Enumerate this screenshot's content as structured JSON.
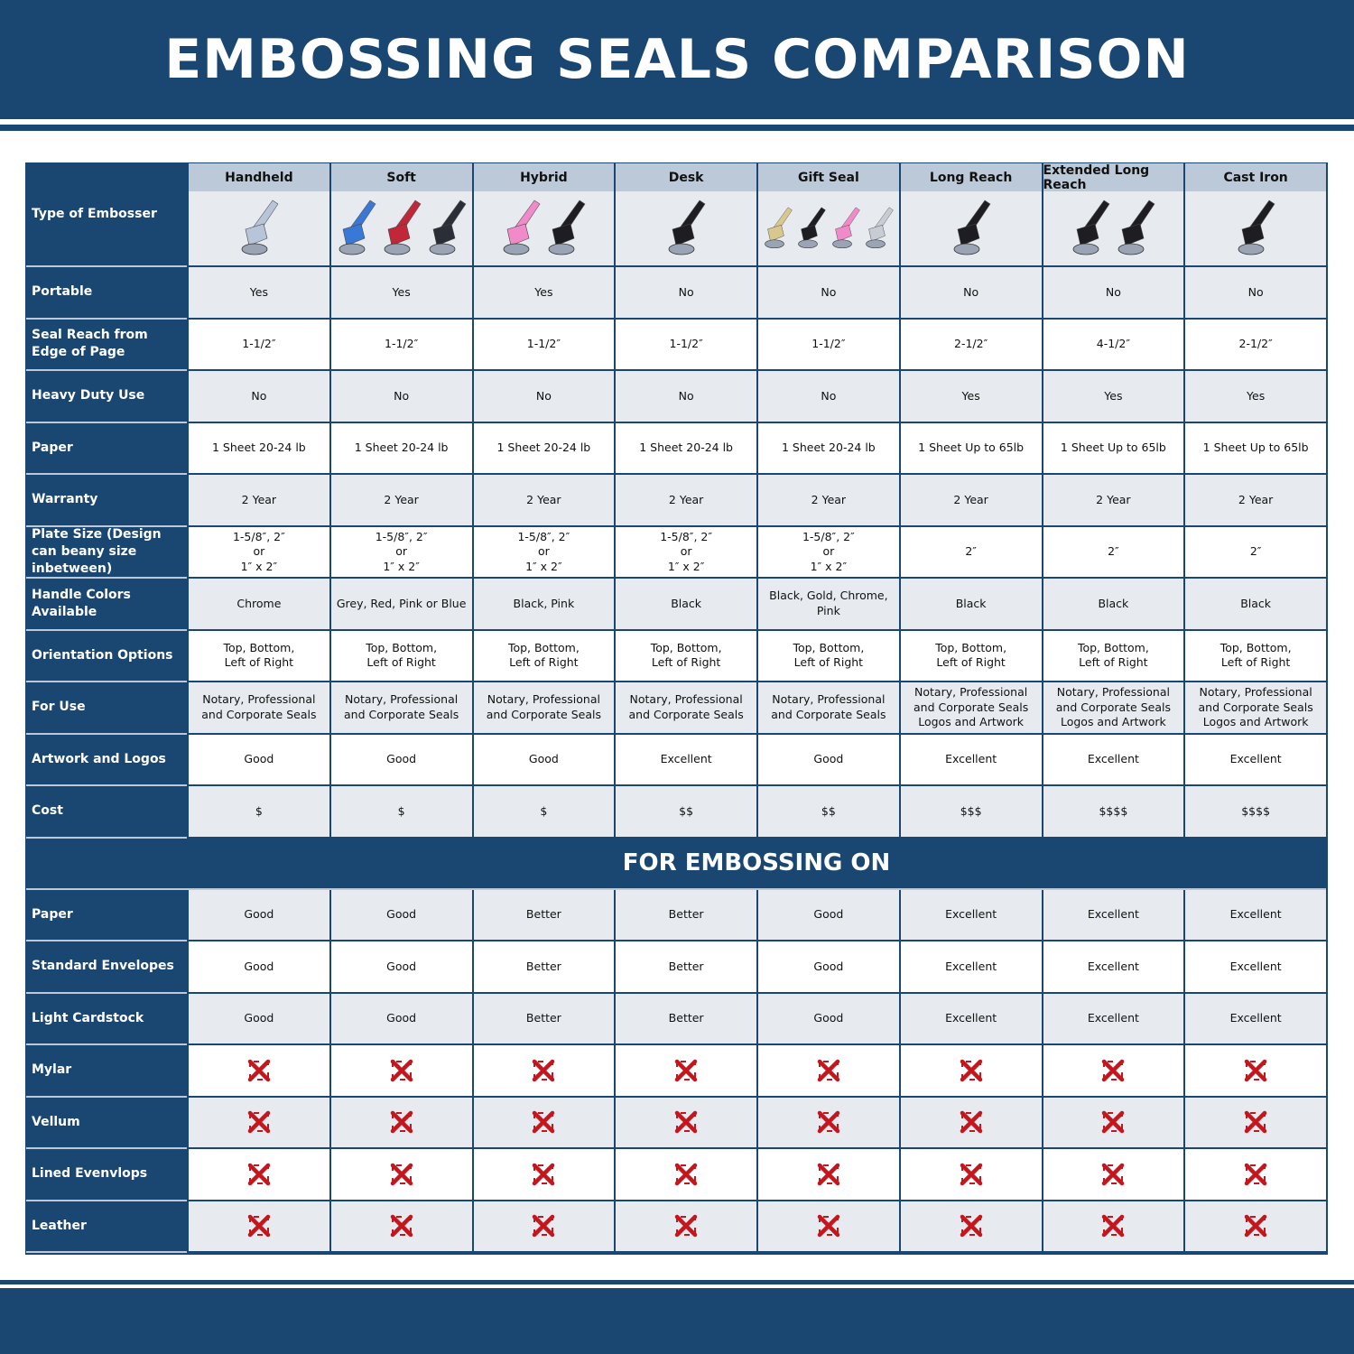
{
  "title": "EMBOSSING SEALS COMPARISON",
  "colors": {
    "primary": "#1a4672",
    "header_cell": "#bcc9d8",
    "row_alt": "#e7ebf0",
    "x_mark": "#c4161c"
  },
  "type_label": "Type of Embosser",
  "columns": [
    {
      "name": "Handheld",
      "image_colors": [
        "#b8c4d8"
      ]
    },
    {
      "name": "Soft",
      "image_colors": [
        "#3a78d8",
        "#c0283a",
        "#2a2e36"
      ]
    },
    {
      "name": "Hybrid",
      "image_colors": [
        "#f08ac8",
        "#1e1e22"
      ]
    },
    {
      "name": "Desk",
      "image_colors": [
        "#1e1e22"
      ]
    },
    {
      "name": "Gift Seal",
      "image_colors": [
        "#d8c890",
        "#1e1e22",
        "#f08ac8",
        "#c8ccd4"
      ]
    },
    {
      "name": "Long Reach",
      "image_colors": [
        "#1e1e22"
      ]
    },
    {
      "name": "Extended Long Reach",
      "image_colors": [
        "#1e1e22",
        "#1e1e22"
      ]
    },
    {
      "name": "Cast Iron",
      "image_colors": [
        "#1e1e22"
      ]
    }
  ],
  "rows": [
    {
      "label": "Portable",
      "values": [
        "Yes",
        "Yes",
        "Yes",
        "No",
        "No",
        "No",
        "No",
        "No"
      ]
    },
    {
      "label": "Seal Reach from Edge of Page",
      "values": [
        "1-1/2″",
        "1-1/2″",
        "1-1/2″",
        "1-1/2″",
        "1-1/2″",
        "2-1/2″",
        "4-1/2″",
        "2-1/2″"
      ]
    },
    {
      "label": "Heavy Duty Use",
      "values": [
        "No",
        "No",
        "No",
        "No",
        "No",
        "Yes",
        "Yes",
        "Yes"
      ]
    },
    {
      "label": "Paper",
      "values": [
        "1 Sheet 20-24 lb",
        "1 Sheet 20-24 lb",
        "1 Sheet 20-24 lb",
        "1 Sheet 20-24 lb",
        "1 Sheet 20-24 lb",
        "1 Sheet Up to 65lb",
        "1 Sheet Up to 65lb",
        "1 Sheet Up to 65lb"
      ]
    },
    {
      "label": "Warranty",
      "values": [
        "2 Year",
        "2 Year",
        "2 Year",
        "2 Year",
        "2 Year",
        "2 Year",
        "2 Year",
        "2 Year"
      ]
    },
    {
      "label": "Plate Size (Design can beany size inbetween)",
      "values": [
        "1-5/8″, 2″\nor\n1″ x 2″",
        "1-5/8″, 2″\nor\n1″ x 2″",
        "1-5/8″, 2″\nor\n1″ x 2″",
        "1-5/8″, 2″\nor\n1″ x 2″",
        "1-5/8″, 2″\nor\n1″ x 2″",
        "2″",
        "2″",
        "2″"
      ]
    },
    {
      "label": "Handle Colors Available",
      "values": [
        "Chrome",
        "Grey, Red, Pink or Blue",
        "Black, Pink",
        "Black",
        "Black, Gold, Chrome, Pink",
        "Black",
        "Black",
        "Black"
      ]
    },
    {
      "label": "Orientation Options",
      "values": [
        "Top, Bottom,\nLeft of Right",
        "Top, Bottom,\nLeft of Right",
        "Top, Bottom,\nLeft of Right",
        "Top, Bottom,\nLeft of Right",
        "Top, Bottom,\nLeft of Right",
        "Top, Bottom,\nLeft of Right",
        "Top, Bottom,\nLeft of Right",
        "Top, Bottom,\nLeft of Right"
      ]
    },
    {
      "label": "For Use",
      "values": [
        "Notary, Professional\nand Corporate Seals",
        "Notary, Professional\nand Corporate Seals",
        "Notary, Professional\nand Corporate Seals",
        "Notary, Professional\nand Corporate Seals",
        "Notary, Professional\nand Corporate Seals",
        "Notary, Professional\nand Corporate Seals\nLogos and Artwork",
        "Notary, Professional\nand Corporate Seals\nLogos and Artwork",
        "Notary, Professional\nand Corporate Seals\nLogos and Artwork"
      ]
    },
    {
      "label": "Artwork and Logos",
      "values": [
        "Good",
        "Good",
        "Good",
        "Excellent",
        "Good",
        "Excellent",
        "Excellent",
        "Excellent"
      ]
    },
    {
      "label": "Cost",
      "values": [
        "$",
        "$",
        "$",
        "$$",
        "$$",
        "$$$",
        "$$$$",
        "$$$$"
      ]
    }
  ],
  "section_title": "FOR EMBOSSING ON",
  "embossing_rows": [
    {
      "label": "Paper",
      "values": [
        "Good",
        "Good",
        "Better",
        "Better",
        "Good",
        "Excellent",
        "Excellent",
        "Excellent"
      ]
    },
    {
      "label": "Standard Envelopes",
      "values": [
        "Good",
        "Good",
        "Better",
        "Better",
        "Good",
        "Excellent",
        "Excellent",
        "Excellent"
      ]
    },
    {
      "label": "Light Cardstock",
      "values": [
        "Good",
        "Good",
        "Better",
        "Better",
        "Good",
        "Excellent",
        "Excellent",
        "Excellent"
      ]
    },
    {
      "label": "Mylar",
      "values": [
        "not-supported",
        "not-supported",
        "not-supported",
        "not-supported",
        "not-supported",
        "not-supported",
        "not-supported",
        "not-supported"
      ]
    },
    {
      "label": "Vellum",
      "values": [
        "not-supported",
        "not-supported",
        "not-supported",
        "not-supported",
        "not-supported",
        "not-supported",
        "not-supported",
        "not-supported"
      ]
    },
    {
      "label": "Lined Evenvlops",
      "values": [
        "not-supported",
        "not-supported",
        "not-supported",
        "not-supported",
        "not-supported",
        "not-supported",
        "not-supported",
        "not-supported"
      ]
    },
    {
      "label": "Leather",
      "values": [
        "not-supported",
        "not-supported",
        "not-supported",
        "not-supported",
        "not-supported",
        "not-supported",
        "not-supported",
        "not-supported"
      ]
    }
  ]
}
